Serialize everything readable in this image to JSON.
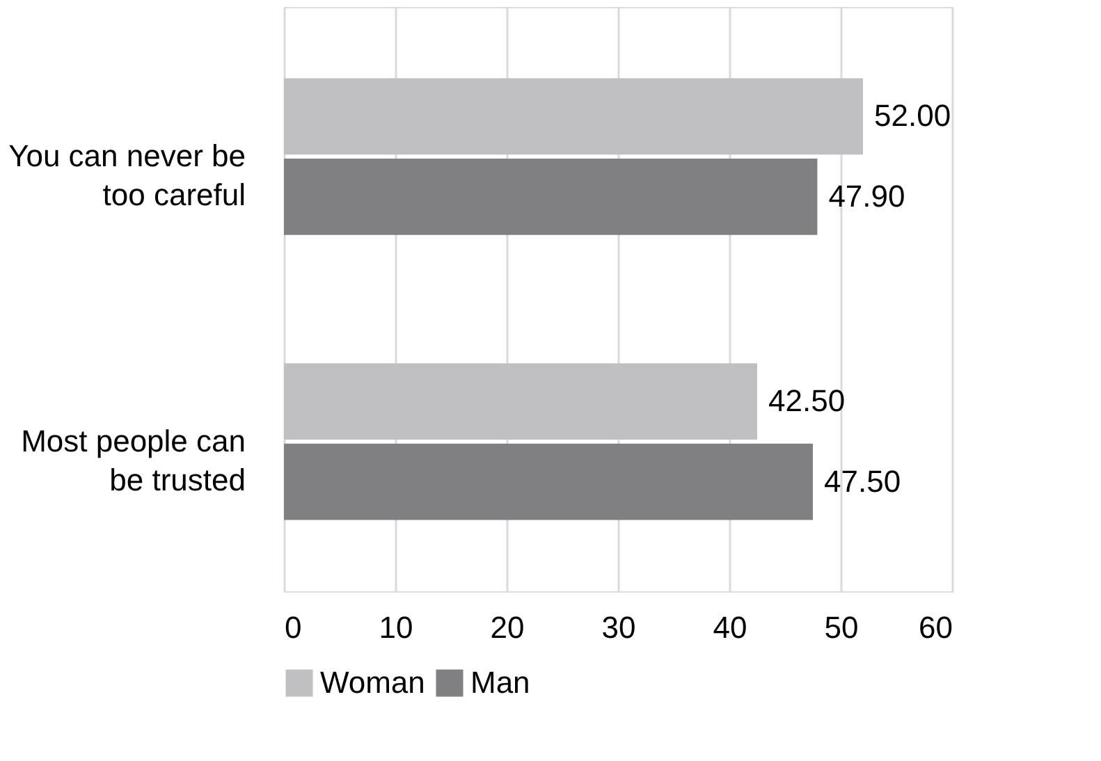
{
  "chart_data": {
    "type": "bar",
    "orientation": "horizontal",
    "categories": [
      "You can never be too careful",
      "Most people can be trusted"
    ],
    "series": [
      {
        "name": "Woman",
        "color": "#c0c0c2",
        "values": [
          52.0,
          42.5
        ],
        "value_labels": [
          "52.00",
          "42.50"
        ]
      },
      {
        "name": "Man",
        "color": "#808083",
        "values": [
          47.9,
          47.5
        ],
        "value_labels": [
          "47.90",
          "47.50"
        ]
      }
    ],
    "xlim": [
      0,
      60
    ],
    "xticks": [
      0,
      10,
      20,
      30,
      40,
      50,
      60
    ],
    "grid": "x",
    "legend": "bottom"
  }
}
